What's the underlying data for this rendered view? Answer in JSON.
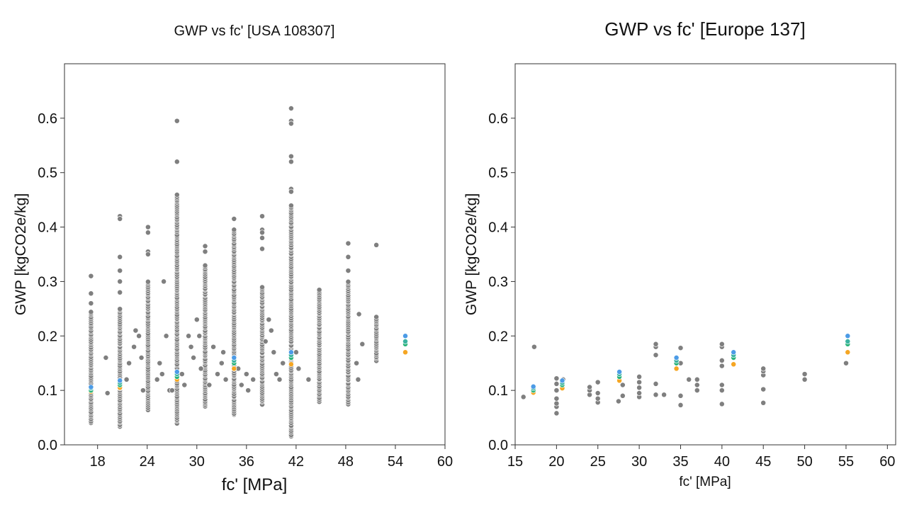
{
  "chart_data": [
    {
      "type": "scatter",
      "title": "GWP vs fc' [USA 108307]",
      "xlabel": "fc' [MPa]",
      "ylabel": "GWP [kgCO2e/kg]",
      "xlim": [
        14,
        60
      ],
      "ylim": [
        0,
        0.7
      ],
      "xticks": [
        18,
        24,
        30,
        36,
        42,
        48,
        54,
        60
      ],
      "yticks": [
        0.0,
        0.1,
        0.2,
        0.3,
        0.4,
        0.5,
        0.6
      ],
      "grid": false,
      "colors": {
        "points": "#7f7f7f",
        "edge": "#ffffff",
        "highlight": [
          "#f5a623",
          "#2ab37a",
          "#3bb3a0",
          "#4c9be6",
          "#7ec8e3"
        ]
      },
      "columns": [
        {
          "x": 17.2,
          "min": 0.04,
          "max": 0.245,
          "extra": [
            0.31,
            0.278,
            0.26
          ]
        },
        {
          "x": 20.7,
          "min": 0.034,
          "max": 0.25,
          "extra": [
            0.42,
            0.415,
            0.345,
            0.32,
            0.3,
            0.28
          ]
        },
        {
          "x": 24.1,
          "min": 0.065,
          "max": 0.3,
          "extra": [
            0.4,
            0.39,
            0.355,
            0.35
          ]
        },
        {
          "x": 27.6,
          "min": 0.04,
          "max": 0.46,
          "extra": [
            0.595,
            0.52
          ]
        },
        {
          "x": 31.0,
          "min": 0.07,
          "max": 0.33,
          "extra": [
            0.365,
            0.355
          ]
        },
        {
          "x": 34.5,
          "min": 0.055,
          "max": 0.395,
          "extra": [
            0.415
          ]
        },
        {
          "x": 37.9,
          "min": 0.075,
          "max": 0.29,
          "extra": [
            0.42,
            0.395,
            0.39,
            0.38,
            0.36
          ]
        },
        {
          "x": 41.4,
          "min": 0.015,
          "max": 0.44,
          "extra": [
            0.618,
            0.595,
            0.59,
            0.53,
            0.52,
            0.47,
            0.465
          ]
        },
        {
          "x": 44.8,
          "min": 0.08,
          "max": 0.285,
          "extra": []
        },
        {
          "x": 48.3,
          "min": 0.075,
          "max": 0.3,
          "extra": [
            0.37,
            0.345,
            0.32
          ]
        },
        {
          "x": 51.7,
          "min": 0.155,
          "max": 0.235,
          "extra": [
            0.367
          ]
        }
      ],
      "scattered": [
        [
          19.0,
          0.16
        ],
        [
          19.2,
          0.095
        ],
        [
          21.5,
          0.12
        ],
        [
          21.8,
          0.15
        ],
        [
          22.4,
          0.18
        ],
        [
          22.6,
          0.21
        ],
        [
          23.0,
          0.2
        ],
        [
          23.3,
          0.16
        ],
        [
          23.5,
          0.1
        ],
        [
          25.2,
          0.12
        ],
        [
          25.5,
          0.15
        ],
        [
          25.8,
          0.13
        ],
        [
          26.0,
          0.3
        ],
        [
          26.3,
          0.2
        ],
        [
          26.7,
          0.1
        ],
        [
          27.0,
          0.1
        ],
        [
          28.2,
          0.13
        ],
        [
          28.5,
          0.11
        ],
        [
          29.0,
          0.2
        ],
        [
          29.3,
          0.18
        ],
        [
          29.6,
          0.16
        ],
        [
          30.0,
          0.23
        ],
        [
          30.3,
          0.2
        ],
        [
          30.5,
          0.14
        ],
        [
          31.5,
          0.11
        ],
        [
          32.0,
          0.18
        ],
        [
          32.5,
          0.13
        ],
        [
          33.0,
          0.15
        ],
        [
          33.2,
          0.17
        ],
        [
          33.5,
          0.12
        ],
        [
          35.0,
          0.14
        ],
        [
          35.4,
          0.11
        ],
        [
          36.0,
          0.13
        ],
        [
          36.2,
          0.1
        ],
        [
          36.8,
          0.12
        ],
        [
          38.3,
          0.19
        ],
        [
          38.7,
          0.23
        ],
        [
          39.0,
          0.21
        ],
        [
          39.3,
          0.17
        ],
        [
          39.6,
          0.13
        ],
        [
          40.0,
          0.12
        ],
        [
          40.4,
          0.15
        ],
        [
          42.0,
          0.17
        ],
        [
          42.3,
          0.14
        ],
        [
          43.5,
          0.12
        ],
        [
          49.3,
          0.15
        ],
        [
          49.6,
          0.24
        ],
        [
          50.0,
          0.185
        ],
        [
          49.5,
          0.12
        ]
      ],
      "highlights": [
        {
          "x": 17.2,
          "values": [
            0.098,
            0.1,
            0.104,
            0.106
          ]
        },
        {
          "x": 20.7,
          "values": [
            0.105,
            0.11,
            0.114,
            0.118
          ]
        },
        {
          "x": 27.6,
          "values": [
            0.12,
            0.125,
            0.13,
            0.134
          ]
        },
        {
          "x": 34.5,
          "values": [
            0.14,
            0.15,
            0.155,
            0.16
          ]
        },
        {
          "x": 41.4,
          "values": [
            0.148,
            0.16,
            0.165,
            0.17
          ]
        },
        {
          "x": 55.2,
          "values": [
            0.17,
            0.185,
            0.19,
            0.2
          ]
        }
      ]
    },
    {
      "type": "scatter",
      "title": "GWP vs fc' [Europe 137]",
      "xlabel": "fc' [MPa]",
      "ylabel": "GWP [kgCO2e/kg]",
      "xlim": [
        15,
        61
      ],
      "ylim": [
        0,
        0.7
      ],
      "xticks": [
        15,
        20,
        25,
        30,
        35,
        40,
        45,
        50,
        55,
        60
      ],
      "yticks": [
        0.0,
        0.1,
        0.2,
        0.3,
        0.4,
        0.5,
        0.6
      ],
      "grid": false,
      "colors": {
        "points": "#7f7f7f",
        "edge": "#ffffff",
        "highlight": [
          "#f5a623",
          "#2ab37a",
          "#3bb3a0",
          "#4c9be6",
          "#7ec8e3"
        ]
      },
      "points": [
        [
          16.0,
          0.088
        ],
        [
          17.3,
          0.18
        ],
        [
          17.2,
          0.1
        ],
        [
          20.0,
          0.058
        ],
        [
          20.0,
          0.07
        ],
        [
          20.0,
          0.076
        ],
        [
          20.0,
          0.085
        ],
        [
          20.0,
          0.1
        ],
        [
          20.0,
          0.112
        ],
        [
          20.0,
          0.122
        ],
        [
          20.8,
          0.12
        ],
        [
          24.0,
          0.092
        ],
        [
          24.0,
          0.1
        ],
        [
          24.0,
          0.106
        ],
        [
          25.0,
          0.078
        ],
        [
          25.0,
          0.085
        ],
        [
          25.0,
          0.095
        ],
        [
          25.0,
          0.115
        ],
        [
          27.5,
          0.08
        ],
        [
          28.0,
          0.09
        ],
        [
          28.0,
          0.11
        ],
        [
          30.0,
          0.088
        ],
        [
          30.0,
          0.095
        ],
        [
          30.0,
          0.105
        ],
        [
          30.0,
          0.115
        ],
        [
          30.0,
          0.125
        ],
        [
          32.0,
          0.092
        ],
        [
          32.0,
          0.112
        ],
        [
          32.0,
          0.165
        ],
        [
          32.0,
          0.18
        ],
        [
          32.0,
          0.185
        ],
        [
          33.0,
          0.092
        ],
        [
          35.0,
          0.073
        ],
        [
          35.0,
          0.09
        ],
        [
          35.0,
          0.15
        ],
        [
          35.0,
          0.178
        ],
        [
          36.0,
          0.12
        ],
        [
          37.0,
          0.1
        ],
        [
          37.0,
          0.11
        ],
        [
          37.0,
          0.12
        ],
        [
          40.0,
          0.075
        ],
        [
          40.0,
          0.1
        ],
        [
          40.0,
          0.11
        ],
        [
          40.0,
          0.145
        ],
        [
          40.0,
          0.155
        ],
        [
          40.0,
          0.18
        ],
        [
          40.0,
          0.185
        ],
        [
          45.0,
          0.077
        ],
        [
          45.0,
          0.102
        ],
        [
          45.0,
          0.128
        ],
        [
          45.0,
          0.135
        ],
        [
          45.0,
          0.14
        ],
        [
          50.0,
          0.12
        ],
        [
          50.0,
          0.13
        ],
        [
          55.0,
          0.15
        ]
      ],
      "highlights": [
        {
          "x": 17.2,
          "values": [
            0.096,
            0.1,
            0.104,
            0.107
          ]
        },
        {
          "x": 20.7,
          "values": [
            0.104,
            0.11,
            0.114,
            0.118
          ]
        },
        {
          "x": 27.6,
          "values": [
            0.118,
            0.125,
            0.13,
            0.134
          ]
        },
        {
          "x": 34.5,
          "values": [
            0.14,
            0.15,
            0.155,
            0.16
          ]
        },
        {
          "x": 41.4,
          "values": [
            0.148,
            0.16,
            0.165,
            0.17
          ]
        },
        {
          "x": 55.2,
          "values": [
            0.17,
            0.185,
            0.19,
            0.2
          ]
        }
      ]
    }
  ]
}
